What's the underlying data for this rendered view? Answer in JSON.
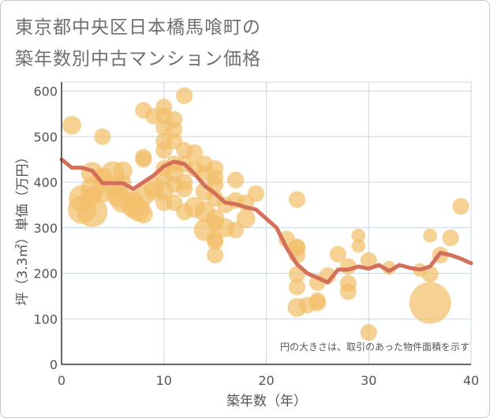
{
  "title_lines": [
    "東京都中央区日本橋馬喰町の",
    "築年数別中古マンション価格"
  ],
  "chart_data": {
    "type": "scatter",
    "xlabel": "築年数（年）",
    "ylabel": "坪（3.3㎡）単価（万円）",
    "xlim": [
      0,
      40
    ],
    "ylim": [
      0,
      620
    ],
    "xticks": [
      0,
      10,
      20,
      30,
      40
    ],
    "yticks": [
      0,
      100,
      200,
      300,
      400,
      500,
      600
    ],
    "grid": true,
    "note": "円の大きさは、取引のあった物件面積を示す",
    "colors": {
      "bubble": "#f3bf6b",
      "line": "#d4705a",
      "grid": "#c9d7e3",
      "axis": "#333333"
    },
    "bubbles": [
      {
        "x": 1,
        "y": 525,
        "size": 3
      },
      {
        "x": 2,
        "y": 365,
        "size": 8
      },
      {
        "x": 2,
        "y": 340,
        "size": 10
      },
      {
        "x": 3,
        "y": 335,
        "size": 12
      },
      {
        "x": 3,
        "y": 420,
        "size": 5
      },
      {
        "x": 3,
        "y": 385,
        "size": 6
      },
      {
        "x": 3,
        "y": 370,
        "size": 3
      },
      {
        "x": 4,
        "y": 500,
        "size": 2
      },
      {
        "x": 4,
        "y": 410,
        "size": 4
      },
      {
        "x": 4,
        "y": 380,
        "size": 5
      },
      {
        "x": 5,
        "y": 420,
        "size": 6
      },
      {
        "x": 5,
        "y": 390,
        "size": 4
      },
      {
        "x": 5.5,
        "y": 370,
        "size": 5
      },
      {
        "x": 6,
        "y": 425,
        "size": 3
      },
      {
        "x": 6,
        "y": 400,
        "size": 2
      },
      {
        "x": 6,
        "y": 360,
        "size": 7
      },
      {
        "x": 7,
        "y": 345,
        "size": 5
      },
      {
        "x": 7,
        "y": 360,
        "size": 3
      },
      {
        "x": 7.5,
        "y": 340,
        "size": 6
      },
      {
        "x": 8,
        "y": 558,
        "size": 2
      },
      {
        "x": 8,
        "y": 455,
        "size": 2
      },
      {
        "x": 8,
        "y": 450,
        "size": 2
      },
      {
        "x": 8,
        "y": 370,
        "size": 4
      },
      {
        "x": 8,
        "y": 330,
        "size": 3
      },
      {
        "x": 9,
        "y": 545,
        "size": 2
      },
      {
        "x": 9,
        "y": 390,
        "size": 4
      },
      {
        "x": 9,
        "y": 380,
        "size": 3
      },
      {
        "x": 10,
        "y": 565,
        "size": 2
      },
      {
        "x": 10,
        "y": 545,
        "size": 2
      },
      {
        "x": 10,
        "y": 520,
        "size": 2
      },
      {
        "x": 10,
        "y": 490,
        "size": 2
      },
      {
        "x": 10,
        "y": 470,
        "size": 2
      },
      {
        "x": 10,
        "y": 430,
        "size": 2
      },
      {
        "x": 10,
        "y": 410,
        "size": 2
      },
      {
        "x": 10,
        "y": 380,
        "size": 3
      },
      {
        "x": 10,
        "y": 355,
        "size": 2
      },
      {
        "x": 11,
        "y": 538,
        "size": 2
      },
      {
        "x": 11,
        "y": 515,
        "size": 2
      },
      {
        "x": 11,
        "y": 490,
        "size": 2
      },
      {
        "x": 11,
        "y": 440,
        "size": 2
      },
      {
        "x": 11,
        "y": 420,
        "size": 3
      },
      {
        "x": 11,
        "y": 395,
        "size": 2
      },
      {
        "x": 11,
        "y": 355,
        "size": 2
      },
      {
        "x": 12,
        "y": 590,
        "size": 2
      },
      {
        "x": 12,
        "y": 470,
        "size": 2
      },
      {
        "x": 12,
        "y": 440,
        "size": 2
      },
      {
        "x": 12,
        "y": 400,
        "size": 2
      },
      {
        "x": 12,
        "y": 385,
        "size": 2
      },
      {
        "x": 12,
        "y": 335,
        "size": 2
      },
      {
        "x": 13,
        "y": 465,
        "size": 2
      },
      {
        "x": 13,
        "y": 430,
        "size": 2
      },
      {
        "x": 13,
        "y": 345,
        "size": 4
      },
      {
        "x": 14,
        "y": 440,
        "size": 2
      },
      {
        "x": 14,
        "y": 420,
        "size": 2
      },
      {
        "x": 14,
        "y": 380,
        "size": 3
      },
      {
        "x": 14,
        "y": 335,
        "size": 4
      },
      {
        "x": 14,
        "y": 295,
        "size": 5
      },
      {
        "x": 15,
        "y": 430,
        "size": 2
      },
      {
        "x": 15,
        "y": 410,
        "size": 2
      },
      {
        "x": 15,
        "y": 395,
        "size": 2
      },
      {
        "x": 15,
        "y": 365,
        "size": 2
      },
      {
        "x": 15,
        "y": 320,
        "size": 3
      },
      {
        "x": 15,
        "y": 310,
        "size": 2
      },
      {
        "x": 15,
        "y": 275,
        "size": 2
      },
      {
        "x": 15,
        "y": 270,
        "size": 2
      },
      {
        "x": 15,
        "y": 240,
        "size": 2
      },
      {
        "x": 16,
        "y": 350,
        "size": 2
      },
      {
        "x": 16,
        "y": 300,
        "size": 3
      },
      {
        "x": 17,
        "y": 405,
        "size": 2
      },
      {
        "x": 17,
        "y": 360,
        "size": 2
      },
      {
        "x": 17,
        "y": 295,
        "size": 2
      },
      {
        "x": 18,
        "y": 355,
        "size": 2
      },
      {
        "x": 18,
        "y": 320,
        "size": 3
      },
      {
        "x": 19,
        "y": 375,
        "size": 2
      },
      {
        "x": 22,
        "y": 275,
        "size": 2
      },
      {
        "x": 23,
        "y": 362,
        "size": 2
      },
      {
        "x": 23,
        "y": 258,
        "size": 2
      },
      {
        "x": 23,
        "y": 255,
        "size": 2
      },
      {
        "x": 23,
        "y": 240,
        "size": 2
      },
      {
        "x": 23,
        "y": 198,
        "size": 2
      },
      {
        "x": 23,
        "y": 170,
        "size": 2
      },
      {
        "x": 23,
        "y": 125,
        "size": 3
      },
      {
        "x": 24,
        "y": 130,
        "size": 2
      },
      {
        "x": 25,
        "y": 180,
        "size": 2
      },
      {
        "x": 25,
        "y": 140,
        "size": 2
      },
      {
        "x": 25,
        "y": 135,
        "size": 2
      },
      {
        "x": 26,
        "y": 195,
        "size": 2
      },
      {
        "x": 27,
        "y": 242,
        "size": 2
      },
      {
        "x": 28,
        "y": 215,
        "size": 2
      },
      {
        "x": 28,
        "y": 178,
        "size": 2
      },
      {
        "x": 28,
        "y": 160,
        "size": 2
      },
      {
        "x": 29,
        "y": 283,
        "size": 1
      },
      {
        "x": 29,
        "y": 260,
        "size": 1
      },
      {
        "x": 30,
        "y": 228,
        "size": 2
      },
      {
        "x": 30,
        "y": 70,
        "size": 2
      },
      {
        "x": 32,
        "y": 212,
        "size": 1
      },
      {
        "x": 35,
        "y": 207,
        "size": 1
      },
      {
        "x": 36,
        "y": 283,
        "size": 1
      },
      {
        "x": 36,
        "y": 198,
        "size": 2
      },
      {
        "x": 36,
        "y": 135,
        "size": 26
      },
      {
        "x": 37,
        "y": 240,
        "size": 2
      },
      {
        "x": 38,
        "y": 278,
        "size": 2
      },
      {
        "x": 39,
        "y": 347,
        "size": 2
      }
    ],
    "line": {
      "x": [
        0,
        1,
        2,
        3,
        4,
        5,
        6,
        7,
        8,
        9,
        10,
        11,
        12,
        13,
        14,
        15,
        16,
        17,
        18,
        19,
        20,
        21,
        22,
        23,
        24,
        25,
        26,
        27,
        28,
        29,
        30,
        31,
        32,
        33,
        34,
        35,
        36,
        37,
        38,
        39,
        40
      ],
      "y": [
        450,
        432,
        432,
        425,
        398,
        398,
        398,
        385,
        400,
        415,
        435,
        445,
        440,
        418,
        392,
        375,
        355,
        352,
        345,
        340,
        320,
        300,
        255,
        220,
        200,
        190,
        180,
        208,
        208,
        215,
        210,
        218,
        205,
        218,
        212,
        208,
        215,
        245,
        240,
        232,
        222
      ]
    }
  }
}
